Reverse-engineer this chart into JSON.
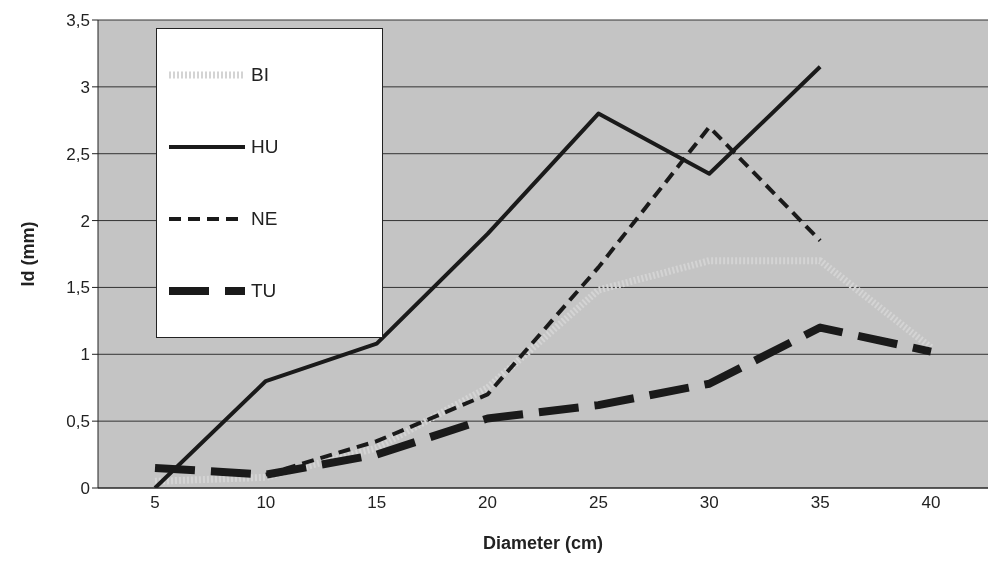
{
  "chart_data": {
    "type": "line",
    "xlabel": "Diameter (cm)",
    "ylabel": "Id (mm)",
    "categories": [
      "5",
      "10",
      "15",
      "20",
      "25",
      "30",
      "35",
      "40"
    ],
    "series": [
      {
        "name": "BI",
        "color": "#d4d4d4",
        "line_style": "dotted",
        "values": [
          0.05,
          0.08,
          0.3,
          0.75,
          1.48,
          1.7,
          1.7,
          1.05
        ]
      },
      {
        "name": "HU",
        "color": "#1a1a1a",
        "line_style": "solid",
        "values": [
          0,
          0.8,
          1.08,
          1.9,
          2.8,
          2.35,
          3.15,
          null
        ]
      },
      {
        "name": "NE",
        "color": "#1a1a1a",
        "line_style": "dashed",
        "values": [
          null,
          0.1,
          0.35,
          0.7,
          1.65,
          2.7,
          1.85,
          null
        ]
      },
      {
        "name": "TU",
        "color": "#1a1a1a",
        "line_style": "dashed",
        "values": [
          0.15,
          0.1,
          0.25,
          0.52,
          0.62,
          0.78,
          1.2,
          1.02
        ]
      }
    ],
    "ylim": [
      0,
      3.5
    ],
    "yticks": [
      0,
      {
        "value": 0.5,
        "label": "0,5"
      },
      1,
      {
        "value": 1.5,
        "label": "1,5"
      },
      2,
      {
        "value": 2.5,
        "label": "2,5"
      },
      3,
      {
        "value": 3.5,
        "label": "3,5"
      }
    ],
    "grid": "y",
    "legend": "top left",
    "marker": "none"
  }
}
